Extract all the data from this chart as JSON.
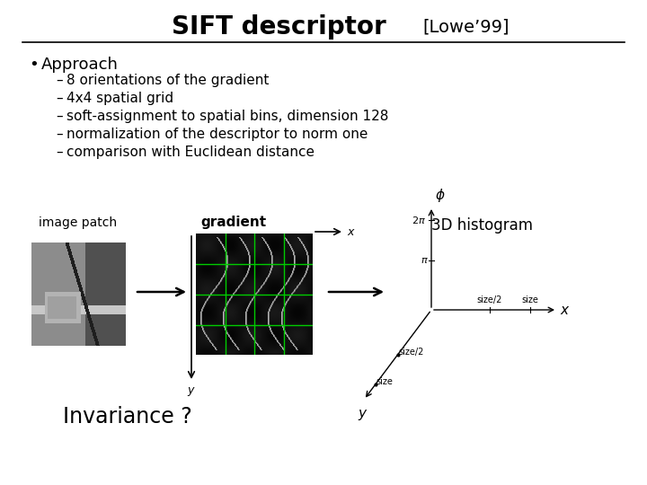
{
  "title_main": "SIFT descriptor",
  "title_sub": "[Lowe’99]",
  "bullet": "Approach",
  "dash_items": [
    "8 orientations of the gradient",
    "4x4 spatial grid",
    "soft-assignment to spatial bins, dimension 128",
    "normalization of the descriptor to norm one",
    "comparison with Euclidean distance"
  ],
  "label_3d": "3D histogram",
  "label_image_patch": "image patch",
  "label_gradient": "gradient",
  "label_invariance": "Invariance ?",
  "bg_color": "#ffffff",
  "text_color": "#000000",
  "title_fontsize": 20,
  "sub_fontsize": 14,
  "body_fontsize": 12,
  "small_fontsize": 10,
  "dash_fontsize": 11
}
